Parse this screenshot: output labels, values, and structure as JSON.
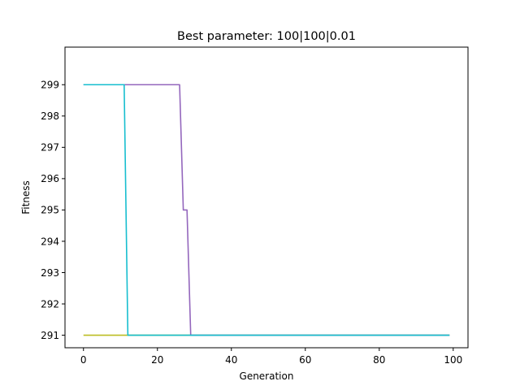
{
  "chart_data": {
    "type": "line",
    "title": "Best parameter: 100|100|0.01",
    "xlabel": "Generation",
    "ylabel": "Fitness",
    "xlim": [
      -5,
      104
    ],
    "ylim": [
      290.6,
      300.2
    ],
    "xticks": [
      0,
      20,
      40,
      60,
      80,
      100
    ],
    "yticks": [
      291,
      292,
      293,
      294,
      295,
      296,
      297,
      298,
      299
    ],
    "grid": false,
    "series": [
      {
        "color": "#bcbd22",
        "x": [
          0,
          99
        ],
        "y": [
          291,
          291
        ]
      },
      {
        "color": "#9467bd",
        "x": [
          0,
          26,
          27,
          28,
          29,
          99
        ],
        "y": [
          299,
          299,
          295,
          295,
          291,
          291
        ]
      },
      {
        "color": "#17becf",
        "x": [
          0,
          11,
          12,
          99
        ],
        "y": [
          299,
          299,
          291,
          291
        ]
      }
    ]
  }
}
